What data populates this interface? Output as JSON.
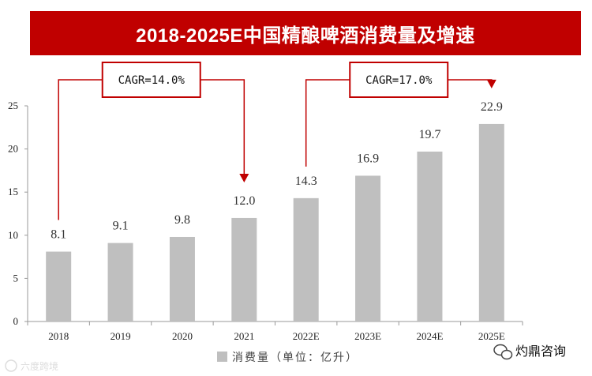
{
  "chart_data": {
    "type": "bar",
    "title": "2018-2025E中国精酿啤酒消费量及增速",
    "categories": [
      "2018",
      "2019",
      "2020",
      "2021",
      "2022E",
      "2023E",
      "2024E",
      "2025E"
    ],
    "series": [
      {
        "name": "消费量（单位：亿升）",
        "values": [
          8.1,
          9.1,
          9.8,
          12.0,
          14.3,
          16.9,
          19.7,
          22.9
        ]
      }
    ],
    "value_labels": [
      "8.1",
      "9.1",
      "9.8",
      "12.0",
      "14.3",
      "16.9",
      "19.7",
      "22.9"
    ],
    "ylim": [
      0,
      25
    ],
    "yticks": [
      0,
      5,
      10,
      15,
      20,
      25
    ],
    "xlabel": "",
    "ylabel": "",
    "legend": "bottom-center",
    "bar_color": "#bfbfbf",
    "accent_color": "#c00000",
    "annotations": [
      {
        "text": "CAGR=14.0%",
        "from_index": 0,
        "to_index": 3
      },
      {
        "text": "CAGR=17.0%",
        "from_index": 4,
        "to_index": 7
      }
    ]
  },
  "watermark": {
    "right": "灼鼎咨询",
    "left": "六度跨境"
  }
}
